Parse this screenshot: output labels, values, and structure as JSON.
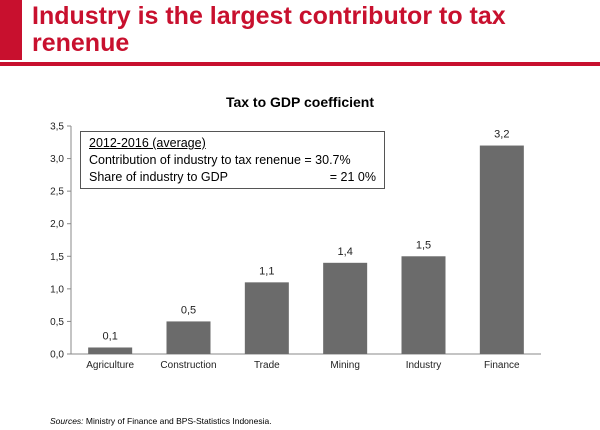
{
  "slide": {
    "title": "Industry is the largest contributor to tax renenue"
  },
  "info_box": {
    "heading": "2012-2016 (average)",
    "line1_label": "Contribution of industry to tax renenue = 30.7%",
    "line2_label": "Share of industry to GDP",
    "line2_value": "= 21 0%"
  },
  "source": {
    "label": "Sources:",
    "text": " Ministry of Finance and BPS-Statistics Indonesia."
  },
  "colors": {
    "accent": "#c8102e",
    "bar": "#6b6b6b"
  },
  "chart_data": {
    "type": "bar",
    "title": "Tax to GDP coefficient",
    "xlabel": "",
    "ylabel": "",
    "categories": [
      "Agriculture",
      "Construction",
      "Trade",
      "Mining",
      "Industry",
      "Finance"
    ],
    "values": [
      0.1,
      0.5,
      1.1,
      1.4,
      1.5,
      3.2
    ],
    "value_labels": [
      "0,1",
      "0,5",
      "1,1",
      "1,4",
      "1,5",
      "3,2"
    ],
    "ylim": [
      0,
      3.5
    ],
    "y_ticks": [
      0,
      0.5,
      1.0,
      1.5,
      2.0,
      2.5,
      3.0,
      3.5
    ],
    "y_tick_labels": [
      "0,0",
      "0,5",
      "1,0",
      "1,5",
      "2,0",
      "2,5",
      "3,0",
      "3,5"
    ],
    "grid": false,
    "legend": "none"
  }
}
